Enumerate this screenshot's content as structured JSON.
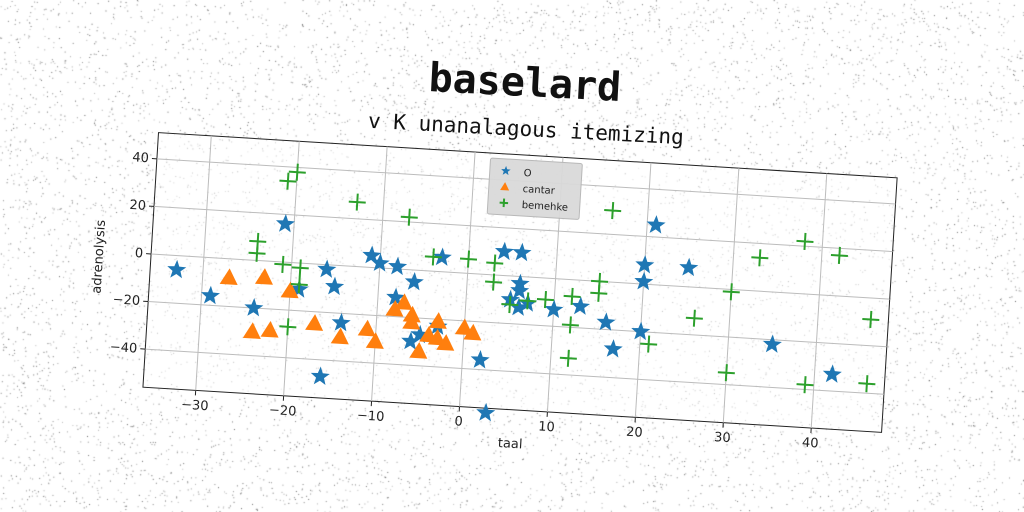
{
  "chart_data": {
    "type": "scatter",
    "suptitle": "baselard",
    "title": "v K unanalagous itemizing",
    "xlabel": "taal",
    "ylabel": "adrenolysis",
    "xlim": [
      -36,
      48
    ],
    "ylim": [
      -56,
      51
    ],
    "xticks": [
      -30,
      -20,
      -10,
      0,
      10,
      20,
      30,
      40
    ],
    "yticks": [
      -40,
      -20,
      0,
      20,
      40
    ],
    "grid": true,
    "legend_position": "top-center",
    "series": [
      {
        "name": "O",
        "marker": "star",
        "color": "#1f77b4",
        "points": [
          [
            -33,
            -6
          ],
          [
            -29,
            -16
          ],
          [
            -24,
            -20
          ],
          [
            -21,
            16
          ],
          [
            -19,
            -11
          ],
          [
            -16,
            -2
          ],
          [
            -15,
            -9
          ],
          [
            -14,
            -24
          ],
          [
            -16,
            -47
          ],
          [
            -11,
            5
          ],
          [
            -10,
            2
          ],
          [
            -8,
            1
          ],
          [
            -8,
            -12
          ],
          [
            -6,
            -5
          ],
          [
            -6,
            -30
          ],
          [
            -5,
            -27
          ],
          [
            -3,
            6
          ],
          [
            -3,
            -23
          ],
          [
            2,
            -36
          ],
          [
            3,
            -58
          ],
          [
            4,
            10
          ],
          [
            6,
            10
          ],
          [
            5,
            -10
          ],
          [
            6,
            -3
          ],
          [
            6,
            -6
          ],
          [
            6,
            -13
          ],
          [
            7,
            -11
          ],
          [
            10,
            -13
          ],
          [
            13,
            -11
          ],
          [
            16,
            -17
          ],
          [
            17,
            -28
          ],
          [
            20,
            -20
          ],
          [
            20,
            8
          ],
          [
            20,
            1
          ],
          [
            21,
            25
          ],
          [
            25,
            8
          ],
          [
            35,
            -22
          ],
          [
            42,
            -33
          ]
        ]
      },
      {
        "name": "cantar",
        "marker": "triangle",
        "color": "#ff7f0e",
        "points": [
          [
            -27,
            -8
          ],
          [
            -24,
            -30
          ],
          [
            -23,
            -7
          ],
          [
            -22,
            -29
          ],
          [
            -20,
            -12
          ],
          [
            -17,
            -25
          ],
          [
            -14,
            -30
          ],
          [
            -11,
            -26
          ],
          [
            -10,
            -31
          ],
          [
            -8,
            -17
          ],
          [
            -7,
            -14
          ],
          [
            -6,
            -19
          ],
          [
            -6,
            -22
          ],
          [
            -5,
            -34
          ],
          [
            -4,
            -27
          ],
          [
            -3,
            -21
          ],
          [
            -3,
            -28
          ],
          [
            -2,
            -30
          ],
          [
            0,
            -23
          ],
          [
            1,
            -25
          ]
        ]
      },
      {
        "name": "bemehke",
        "marker": "plus",
        "color": "#2ca02c",
        "points": [
          [
            -20,
            38
          ],
          [
            -21,
            34
          ],
          [
            -13,
            27
          ],
          [
            -7,
            22
          ],
          [
            -24,
            8
          ],
          [
            -24,
            3
          ],
          [
            -21,
            -1
          ],
          [
            -19,
            -2
          ],
          [
            -19,
            -9
          ],
          [
            -20,
            -27
          ],
          [
            -4,
            6
          ],
          [
            0,
            6
          ],
          [
            3,
            5
          ],
          [
            3,
            -3
          ],
          [
            5,
            -12
          ],
          [
            7,
            -10
          ],
          [
            9,
            -9
          ],
          [
            12,
            -7
          ],
          [
            12,
            -19
          ],
          [
            12,
            -33
          ],
          [
            15,
            0
          ],
          [
            15,
            -5
          ],
          [
            16,
            30
          ],
          [
            21,
            -25
          ],
          [
            26,
            -13
          ],
          [
            30,
            -1
          ],
          [
            30,
            -35
          ],
          [
            33,
            14
          ],
          [
            38,
            22
          ],
          [
            42,
            17
          ],
          [
            39,
            -38
          ],
          [
            46,
            -36
          ],
          [
            46,
            -9
          ]
        ]
      }
    ]
  }
}
